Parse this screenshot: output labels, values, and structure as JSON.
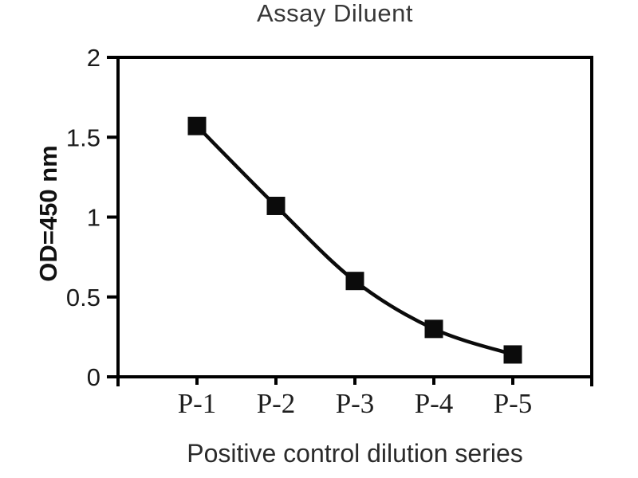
{
  "figure": {
    "title": "Assay Diluent",
    "xlabel": "Positive control dilution series",
    "ylabel": "OD=450 nm"
  },
  "chart_data": {
    "type": "line",
    "title": "Assay Diluent",
    "xlabel": "Positive control dilution series",
    "ylabel": "OD=450 nm",
    "categories": [
      "P-1",
      "P-2",
      "P-3",
      "P-4",
      "P-5"
    ],
    "values": [
      1.57,
      1.07,
      0.6,
      0.3,
      0.14
    ],
    "ylim": [
      0,
      2
    ],
    "y_ticks": [
      {
        "value": 0,
        "label": "0"
      },
      {
        "value": 0.5,
        "label": "0.5"
      },
      {
        "value": 1,
        "label": "1"
      },
      {
        "value": 1.5,
        "label": "1.5"
      },
      {
        "value": 2,
        "label": "2"
      }
    ],
    "grid": false,
    "legend": "none",
    "marker": "filled-square",
    "colors": {
      "line": "#0b0b0b",
      "marker": "#0b0b0b",
      "axis": "#000000",
      "background": "#ffffff"
    }
  }
}
